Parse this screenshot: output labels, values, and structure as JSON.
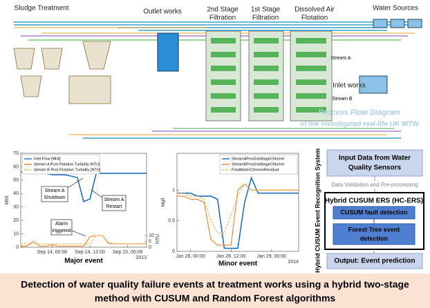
{
  "diagram": {
    "sludge": "Sludge Treatment",
    "outlet": "Outlet works",
    "stage2": [
      "2nd Stage",
      "Filtration"
    ],
    "stage1": [
      "1st Stage",
      "Filtration"
    ],
    "daf": [
      "Dissolved Air",
      "Flotation"
    ],
    "sources": "Water Sources",
    "stream_a": "Stream A",
    "inlet": "Inlet works",
    "stream_b": "Stream B",
    "caption": [
      "Process Flow Diagram",
      "of the investigated real-life UK WTW"
    ]
  },
  "chart_data": [
    {
      "type": "line",
      "caption": "Major event",
      "ylabel": "Ml/d",
      "y2label": "NTU",
      "x": [
        "Sep 13, 14:00",
        "Sep 13, 16:00",
        "Sep 13, 18:00",
        "Sep 13, 20:00",
        "Sep 13, 22:00",
        "Sep 14, 00:00",
        "Sep 14, 02:00",
        "Sep 14, 04:00",
        "Sep 14, 06:00",
        "Sep 14, 08:00",
        "Sep 14, 10:00",
        "Sep 14, 12:00",
        "Sep 14, 14:00",
        "Sep 14, 16:00",
        "Sep 14, 18:00",
        "Sep 14, 20:00",
        "Sep 14, 22:00",
        "Sep 15, 00:00",
        "Sep 15, 02:00",
        "Sep 15, 04:00",
        "Sep 15, 06:00"
      ],
      "xlim": [
        "Sep 13, 14:00",
        "Sep 15, 06:00"
      ],
      "xticks": [
        "Sep 14, 00:00",
        "Sep 14, 12:00",
        "Sep 15, 00:00"
      ],
      "x_year": "2013",
      "ylim": [
        0,
        70
      ],
      "yticks": [
        0,
        10,
        20,
        30,
        40,
        50,
        60,
        70
      ],
      "y2lim": [
        0,
        80
      ],
      "y2ticks": [
        0,
        5,
        10
      ],
      "legend": "upper left",
      "series": [
        {
          "name": "Inlet Flow [Ml/d]",
          "color": "#1f6fc0",
          "values": [
            56,
            56,
            55,
            55,
            55,
            54,
            54,
            54,
            53,
            52,
            34,
            36,
            55,
            55,
            55,
            55,
            55,
            55,
            55,
            55,
            55
          ]
        },
        {
          "name": "Stream A Post Flotation Turbidity [NTU]",
          "color": "#f07f2b",
          "axis": "y2",
          "values": [
            1,
            1,
            5,
            1,
            1,
            2,
            1,
            1,
            1,
            1,
            1,
            9,
            10,
            10,
            3,
            3,
            3,
            3,
            3,
            3,
            3
          ]
        },
        {
          "name": "Stream B Post Flotation Turbidity [NTU]",
          "color": "#f5b54a",
          "axis": "y2",
          "dash": true,
          "values": [
            3,
            3,
            3,
            3,
            3,
            3,
            3,
            3,
            3,
            3,
            3,
            3,
            10,
            10,
            4,
            3,
            3,
            3,
            3,
            3,
            3
          ]
        }
      ],
      "annotations": [
        [
          "Stream A",
          "Shutdown"
        ],
        [
          "Stream A",
          "Restart"
        ],
        [
          "Alarm",
          "triggered"
        ]
      ]
    },
    {
      "type": "line",
      "caption": "Minor event",
      "ylabel": "Mg/l",
      "x": [
        "Jan 27, 20:00",
        "Jan 27, 22:00",
        "Jan 28, 00:00",
        "Jan 28, 02:00",
        "Jan 28, 04:00",
        "Jan 28, 06:00",
        "Jan 28, 08:00",
        "Jan 28, 10:00",
        "Jan 28, 12:00",
        "Jan 28, 14:00",
        "Jan 28, 16:00",
        "Jan 28, 18:00",
        "Jan 28, 20:00",
        "Jan 28, 22:00",
        "Jan 29, 00:00",
        "Jan 29, 02:00",
        "Jan 29, 04:00",
        "Jan 29, 06:00",
        "Jan 29, 08:00"
      ],
      "xlim": [
        "Jan 27, 20:00",
        "Jan 29, 08:00"
      ],
      "xticks": [
        "Jan 28, 00:00",
        "Jan 28, 12:00",
        "Jan 29, 00:00"
      ],
      "x_year": "2014",
      "ylim": [
        0,
        1.6
      ],
      "yticks": [
        0,
        0.5,
        1
      ],
      "legend": "upper right",
      "series": [
        {
          "name": "StreamAPost2ndStageChlorine",
          "color": "#1f6fc0",
          "values": [
            0.95,
            0.95,
            0.95,
            0.9,
            0.9,
            0.9,
            0.85,
            0.05,
            0.05,
            0.05,
            0.8,
            1.2,
            0.95,
            0.95,
            0.95,
            0.95,
            0.95,
            0.95,
            0.95
          ]
        },
        {
          "name": "StreamBPost2ndStageChlorine",
          "color": "#f07f2b",
          "values": [
            0.9,
            0.9,
            0.85,
            0.85,
            0.8,
            0.2,
            0.1,
            0.1,
            0.1,
            1.0,
            1.1,
            1.0,
            1.0,
            1.0,
            1.0,
            1.0,
            1.0,
            1.0,
            1.0
          ]
        },
        {
          "name": "FinalWaterChlorineResidual",
          "color": "#f5b54a",
          "dash": true,
          "values": [
            0.95,
            0.95,
            0.9,
            0.9,
            0.85,
            0.5,
            0.3,
            0.3,
            0.6,
            0.9,
            1.1,
            1.0,
            1.0,
            1.0,
            1.0,
            1.0,
            1.0,
            1.0,
            1.0
          ]
        }
      ]
    }
  ],
  "flowchart": {
    "system": "Hybrid CUSUM Event Recognition System",
    "input": [
      "Input Data from Water",
      "Quality Sensors"
    ],
    "validation": "Data Validation and Pre-processing",
    "hcers": "Hybrid CUSUM ERS (HC-ERS)",
    "cusum": "CUSUM fault detection",
    "forest": [
      "Forest Tree event",
      "detection"
    ],
    "output": "Output: Event prediction"
  },
  "footer": [
    "Detection of water quality failure events at treatment works using a hybrid two-stage",
    "method with CUSUM and Random Forest algorithms"
  ]
}
